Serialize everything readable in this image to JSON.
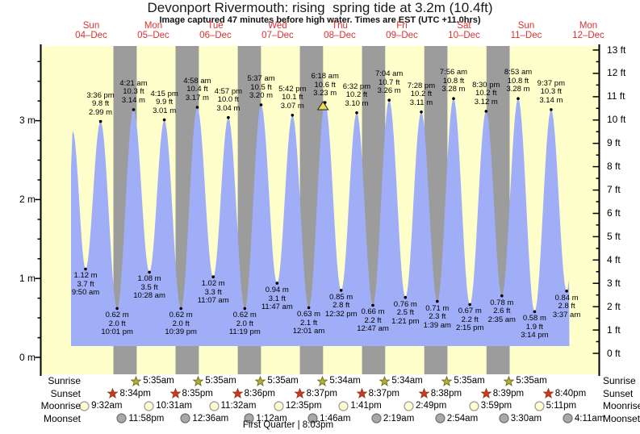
{
  "title": "Devonport Rivermouth: rising  spring tide at 3.2m (10.4ft)",
  "subtitle": "Image captured 47 minutes before high water. Times are EST (UTC +11.0hrs)",
  "moon_phase": "First Quarter | 8:03pm",
  "row_labels": [
    "Sunrise",
    "Sunset",
    "Moonrise",
    "Moonset"
  ],
  "colors": {
    "day_bg": "#ffffcc",
    "night_band": "#9c9c9c",
    "water": "#a0aef8",
    "date_red": "#e03030",
    "marker_fill": "#f0dc50",
    "sunrise_star": "#b2b236",
    "sunrise_star_stroke": "#73731f",
    "sunset_star": "#d63425",
    "sunset_star_stroke": "#8f3c1c",
    "moonrise_fill": "#ffffd0",
    "moonrise_stroke": "#999999",
    "moonset_fill": "#a8a8a8",
    "moonset_stroke": "#707070"
  },
  "chart_data": {
    "type": "area",
    "title": "Devonport Rivermouth: rising  spring tide at 3.2m (10.4ft)",
    "x_days": [
      {
        "weekday": "Sun",
        "date": "04–Dec"
      },
      {
        "weekday": "Mon",
        "date": "05–Dec"
      },
      {
        "weekday": "Tue",
        "date": "06–Dec"
      },
      {
        "weekday": "Wed",
        "date": "07–Dec"
      },
      {
        "weekday": "Thu",
        "date": "08–Dec"
      },
      {
        "weekday": "Fri",
        "date": "09–Dec"
      },
      {
        "weekday": "Sat",
        "date": "10–Dec"
      },
      {
        "weekday": "Sun",
        "date": "11–Dec"
      },
      {
        "weekday": "Mon",
        "date": "12–Dec"
      }
    ],
    "y_axis_left": {
      "unit": "m",
      "ticks": [
        0,
        1,
        2,
        3
      ]
    },
    "y_axis_right": {
      "unit": "ft",
      "ticks": [
        0,
        1,
        2,
        3,
        4,
        5,
        6,
        7,
        8,
        9,
        10,
        11,
        12,
        13
      ]
    },
    "unlabeled_start_peak": {
      "day": 0,
      "hour": 4.85,
      "height_m": 2.87
    },
    "tide_events": [
      {
        "kind": "low",
        "day": 0,
        "hour": 9.833,
        "time": "9:50 am",
        "ft": "3.7 ft",
        "m": "1.12 m",
        "height_m": 1.12
      },
      {
        "kind": "high",
        "day": 0,
        "hour": 15.6,
        "time": "3:36 pm",
        "ft": "9.8 ft",
        "m": "2.99 m",
        "height_m": 2.99
      },
      {
        "kind": "low",
        "day": 0,
        "hour": 22.017,
        "time": "10:01 pm",
        "ft": "2.0 ft",
        "m": "0.62 m",
        "height_m": 0.62
      },
      {
        "kind": "high",
        "day": 1,
        "hour": 4.35,
        "time": "4:21 am",
        "ft": "10.3 ft",
        "m": "3.14 m",
        "height_m": 3.14
      },
      {
        "kind": "low",
        "day": 1,
        "hour": 10.467,
        "time": "10:28 am",
        "ft": "3.5 ft",
        "m": "1.08 m",
        "height_m": 1.08
      },
      {
        "kind": "high",
        "day": 1,
        "hour": 16.25,
        "time": "4:15 pm",
        "ft": "9.9 ft",
        "m": "3.01 m",
        "height_m": 3.01
      },
      {
        "kind": "low",
        "day": 1,
        "hour": 22.65,
        "time": "10:39 pm",
        "ft": "2.0 ft",
        "m": "0.62 m",
        "height_m": 0.62
      },
      {
        "kind": "high",
        "day": 2,
        "hour": 4.967,
        "time": "4:58 am",
        "ft": "10.4 ft",
        "m": "3.17 m",
        "height_m": 3.17
      },
      {
        "kind": "low",
        "day": 2,
        "hour": 11.117,
        "time": "11:07 am",
        "ft": "3.3 ft",
        "m": "1.02 m",
        "height_m": 1.02
      },
      {
        "kind": "high",
        "day": 2,
        "hour": 16.95,
        "time": "4:57 pm",
        "ft": "10.0 ft",
        "m": "3.04 m",
        "height_m": 3.04
      },
      {
        "kind": "low",
        "day": 2,
        "hour": 23.317,
        "time": "11:19 pm",
        "ft": "2.0 ft",
        "m": "0.62 m",
        "height_m": 0.62
      },
      {
        "kind": "high",
        "day": 3,
        "hour": 5.617,
        "time": "5:37 am",
        "ft": "10.5 ft",
        "m": "3.20 m",
        "height_m": 3.2
      },
      {
        "kind": "low",
        "day": 3,
        "hour": 11.783,
        "time": "11:47 am",
        "ft": "3.1 ft",
        "m": "0.94 m",
        "height_m": 0.94
      },
      {
        "kind": "high",
        "day": 3,
        "hour": 17.7,
        "time": "5:42 pm",
        "ft": "10.1 ft",
        "m": "3.07 m",
        "height_m": 3.07
      },
      {
        "kind": "low",
        "day": 4,
        "hour": 0.017,
        "time": "12:01 am",
        "ft": "2.1 ft",
        "m": "0.63 m",
        "height_m": 0.63
      },
      {
        "kind": "high",
        "day": 4,
        "hour": 6.3,
        "time": "6:18 am",
        "ft": "10.6 ft",
        "m": "3.23 m",
        "height_m": 3.23,
        "current": true
      },
      {
        "kind": "low",
        "day": 4,
        "hour": 12.533,
        "time": "12:32 pm",
        "ft": "2.8 ft",
        "m": "0.85 m",
        "height_m": 0.85
      },
      {
        "kind": "high",
        "day": 4,
        "hour": 18.533,
        "time": "6:32 pm",
        "ft": "10.2 ft",
        "m": "3.10 m",
        "height_m": 3.1
      },
      {
        "kind": "low",
        "day": 5,
        "hour": 0.783,
        "time": "12:47 am",
        "ft": "2.2 ft",
        "m": "0.66 m",
        "height_m": 0.66
      },
      {
        "kind": "high",
        "day": 5,
        "hour": 7.067,
        "time": "7:04 am",
        "ft": "10.7 ft",
        "m": "3.26 m",
        "height_m": 3.26
      },
      {
        "kind": "low",
        "day": 5,
        "hour": 13.35,
        "time": "1:21 pm",
        "ft": "2.5 ft",
        "m": "0.76 m",
        "height_m": 0.76
      },
      {
        "kind": "high",
        "day": 5,
        "hour": 19.467,
        "time": "7:28 pm",
        "ft": "10.2 ft",
        "m": "3.11 m",
        "height_m": 3.11
      },
      {
        "kind": "low",
        "day": 6,
        "hour": 1.65,
        "time": "1:39 am",
        "ft": "2.3 ft",
        "m": "0.71 m",
        "height_m": 0.71
      },
      {
        "kind": "high",
        "day": 6,
        "hour": 7.933,
        "time": "7:56 am",
        "ft": "10.8 ft",
        "m": "3.28 m",
        "height_m": 3.28
      },
      {
        "kind": "low",
        "day": 6,
        "hour": 14.25,
        "time": "2:15 pm",
        "ft": "2.2 ft",
        "m": "0.67 m",
        "height_m": 0.67
      },
      {
        "kind": "high",
        "day": 6,
        "hour": 20.5,
        "time": "8:30 pm",
        "ft": "10.2 ft",
        "m": "3.12 m",
        "height_m": 3.12
      },
      {
        "kind": "low",
        "day": 7,
        "hour": 2.583,
        "time": "2:35 am",
        "ft": "2.6 ft",
        "m": "0.78 m",
        "height_m": 0.78
      },
      {
        "kind": "high",
        "day": 7,
        "hour": 8.883,
        "time": "8:53 am",
        "ft": "10.8 ft",
        "m": "3.28 m",
        "height_m": 3.28
      },
      {
        "kind": "low",
        "day": 7,
        "hour": 15.233,
        "time": "3:14 pm",
        "ft": "1.9 ft",
        "m": "0.58 m",
        "height_m": 0.58
      },
      {
        "kind": "high",
        "day": 7,
        "hour": 21.617,
        "time": "9:37 pm",
        "ft": "10.3 ft",
        "m": "3.14 m",
        "height_m": 3.14
      },
      {
        "kind": "low",
        "day": 8,
        "hour": 3.617,
        "time": "3:37 am",
        "ft": "2.8 ft",
        "m": "0.84 m",
        "height_m": 0.84
      }
    ],
    "current_marker": {
      "day": 4,
      "hour": 5.517,
      "note": "47 minutes before high water"
    }
  },
  "astro": {
    "sunrise": [
      {
        "day": 1,
        "hour": 5.583,
        "time": "5:35am"
      },
      {
        "day": 2,
        "hour": 5.583,
        "time": "5:35am"
      },
      {
        "day": 3,
        "hour": 5.583,
        "time": "5:35am"
      },
      {
        "day": 4,
        "hour": 5.567,
        "time": "5:34am"
      },
      {
        "day": 5,
        "hour": 5.567,
        "time": "5:34am"
      },
      {
        "day": 6,
        "hour": 5.583,
        "time": "5:35am"
      },
      {
        "day": 7,
        "hour": 5.583,
        "time": "5:35am"
      }
    ],
    "sunset": [
      {
        "day": 0,
        "hour": 20.567,
        "time": "8:34pm"
      },
      {
        "day": 1,
        "hour": 20.583,
        "time": "8:35pm"
      },
      {
        "day": 2,
        "hour": 20.6,
        "time": "8:36pm"
      },
      {
        "day": 3,
        "hour": 20.617,
        "time": "8:37pm"
      },
      {
        "day": 4,
        "hour": 20.617,
        "time": "8:37pm"
      },
      {
        "day": 5,
        "hour": 20.633,
        "time": "8:38pm"
      },
      {
        "day": 6,
        "hour": 20.65,
        "time": "8:39pm"
      },
      {
        "day": 7,
        "hour": 20.667,
        "time": "8:40pm"
      }
    ],
    "moonrise": [
      {
        "day": 0,
        "hour": 9.533,
        "time": "9:32am"
      },
      {
        "day": 1,
        "hour": 10.517,
        "time": "10:31am"
      },
      {
        "day": 2,
        "hour": 11.533,
        "time": "11:32am"
      },
      {
        "day": 3,
        "hour": 12.583,
        "time": "12:35pm"
      },
      {
        "day": 4,
        "hour": 13.683,
        "time": "1:41pm"
      },
      {
        "day": 5,
        "hour": 14.817,
        "time": "2:49pm"
      },
      {
        "day": 6,
        "hour": 15.983,
        "time": "3:59pm"
      },
      {
        "day": 7,
        "hour": 17.183,
        "time": "5:11pm"
      }
    ],
    "moonset": [
      {
        "day": 0,
        "hour": 23.967,
        "time": "11:58pm"
      },
      {
        "day": 2,
        "hour": 0.6,
        "time": "12:36am"
      },
      {
        "day": 3,
        "hour": 1.2,
        "time": "1:12am"
      },
      {
        "day": 4,
        "hour": 1.767,
        "time": "1:46am"
      },
      {
        "day": 5,
        "hour": 2.317,
        "time": "2:19am"
      },
      {
        "day": 6,
        "hour": 2.9,
        "time": "2:54am"
      },
      {
        "day": 7,
        "hour": 3.5,
        "time": "3:30am"
      },
      {
        "day": 8,
        "hour": 4.183,
        "time": "4:11am"
      }
    ]
  }
}
